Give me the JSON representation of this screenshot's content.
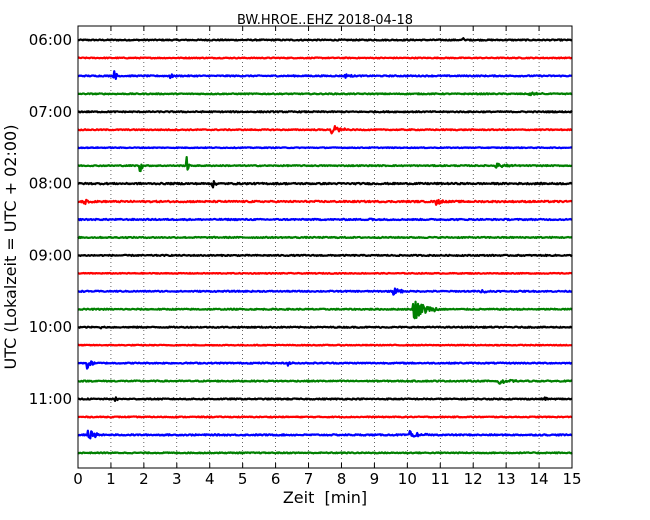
{
  "chart_data": {
    "type": "line",
    "title": "BW.HROE..EHZ 2018-04-18",
    "xlabel": "Zeit  [min]",
    "ylabel": "UTC (Lokalzeit = UTC + 02:00)",
    "xlim": [
      0,
      15
    ],
    "x_ticks": [
      "0",
      "1",
      "2",
      "3",
      "4",
      "5",
      "6",
      "7",
      "8",
      "9",
      "10",
      "11",
      "12",
      "13",
      "14",
      "15"
    ],
    "y_tick_labels": [
      "06:00",
      "07:00",
      "08:00",
      "09:00",
      "10:00",
      "11:00"
    ],
    "trace_interval_min": 15,
    "grid": "vertical dotted at each minute",
    "trace_colors": [
      "#000000",
      "#ff0000",
      "#0000ff",
      "#008000"
    ],
    "traces": [
      {
        "start": "06:00",
        "color": "#000000",
        "noise": 0.22,
        "events": [
          {
            "t": 11.7,
            "amp": 0.6,
            "dur": 0.2
          }
        ]
      },
      {
        "start": "06:15",
        "color": "#ff0000",
        "noise": 0.18,
        "events": []
      },
      {
        "start": "06:30",
        "color": "#0000ff",
        "noise": 0.22,
        "events": [
          {
            "t": 1.1,
            "amp": 1.4,
            "dur": 0.15
          },
          {
            "t": 2.8,
            "amp": 0.6,
            "dur": 0.2
          },
          {
            "t": 8.1,
            "amp": 0.55,
            "dur": 0.3
          }
        ]
      },
      {
        "start": "06:45",
        "color": "#008000",
        "noise": 0.2,
        "events": [
          {
            "t": 13.7,
            "amp": 0.5,
            "dur": 0.5
          }
        ]
      },
      {
        "start": "07:00",
        "color": "#000000",
        "noise": 0.22,
        "events": []
      },
      {
        "start": "07:15",
        "color": "#ff0000",
        "noise": 0.2,
        "events": [
          {
            "t": 7.7,
            "amp": 1.3,
            "dur": 0.5
          }
        ]
      },
      {
        "start": "07:30",
        "color": "#0000ff",
        "noise": 0.16,
        "events": []
      },
      {
        "start": "07:45",
        "color": "#008000",
        "noise": 0.2,
        "events": [
          {
            "t": 1.9,
            "amp": 2.2,
            "dur": 0.1
          },
          {
            "t": 3.3,
            "amp": 2.2,
            "dur": 0.1
          },
          {
            "t": 12.7,
            "amp": 0.7,
            "dur": 0.6
          }
        ]
      },
      {
        "start": "08:00",
        "color": "#000000",
        "noise": 0.28,
        "events": [
          {
            "t": 4.1,
            "amp": 0.9,
            "dur": 0.15
          }
        ]
      },
      {
        "start": "08:15",
        "color": "#ff0000",
        "noise": 0.28,
        "events": [
          {
            "t": 0.2,
            "amp": 0.7,
            "dur": 0.3
          },
          {
            "t": 10.9,
            "amp": 0.8,
            "dur": 0.3
          }
        ]
      },
      {
        "start": "08:30",
        "color": "#0000ff",
        "noise": 0.24,
        "events": [
          {
            "t": 8.8,
            "amp": 0.6,
            "dur": 0.3
          }
        ]
      },
      {
        "start": "08:45",
        "color": "#008000",
        "noise": 0.22,
        "events": []
      },
      {
        "start": "09:00",
        "color": "#000000",
        "noise": 0.22,
        "events": []
      },
      {
        "start": "09:15",
        "color": "#ff0000",
        "noise": 0.16,
        "events": []
      },
      {
        "start": "09:30",
        "color": "#0000ff",
        "noise": 0.22,
        "events": [
          {
            "t": 9.6,
            "amp": 0.9,
            "dur": 0.4
          },
          {
            "t": 12.2,
            "amp": 0.5,
            "dur": 0.4
          }
        ]
      },
      {
        "start": "09:45",
        "color": "#008000",
        "noise": 0.22,
        "events": [
          {
            "t": 10.2,
            "amp": 2.5,
            "dur": 0.8
          }
        ]
      },
      {
        "start": "10:00",
        "color": "#000000",
        "noise": 0.22,
        "events": [
          {
            "t": 0.6,
            "amp": 0.6,
            "dur": 0.2
          }
        ]
      },
      {
        "start": "10:15",
        "color": "#ff0000",
        "noise": 0.16,
        "events": []
      },
      {
        "start": "10:30",
        "color": "#0000ff",
        "noise": 0.22,
        "events": [
          {
            "t": 0.3,
            "amp": 2.0,
            "dur": 0.2
          },
          {
            "t": 6.4,
            "amp": 0.5,
            "dur": 0.2
          }
        ]
      },
      {
        "start": "10:45",
        "color": "#008000",
        "noise": 0.22,
        "events": [
          {
            "t": 12.8,
            "amp": 1.0,
            "dur": 0.5
          }
        ]
      },
      {
        "start": "11:00",
        "color": "#000000",
        "noise": 0.22,
        "events": [
          {
            "t": 1.1,
            "amp": 0.9,
            "dur": 0.2
          },
          {
            "t": 14.2,
            "amp": 0.5,
            "dur": 0.2
          }
        ]
      },
      {
        "start": "11:15",
        "color": "#ff0000",
        "noise": 0.18,
        "events": []
      },
      {
        "start": "11:30",
        "color": "#0000ff",
        "noise": 0.24,
        "events": [
          {
            "t": 0.3,
            "amp": 1.4,
            "dur": 0.4
          },
          {
            "t": 10.1,
            "amp": 1.2,
            "dur": 0.5
          }
        ]
      },
      {
        "start": "11:45",
        "color": "#008000",
        "noise": 0.2,
        "events": []
      }
    ]
  }
}
